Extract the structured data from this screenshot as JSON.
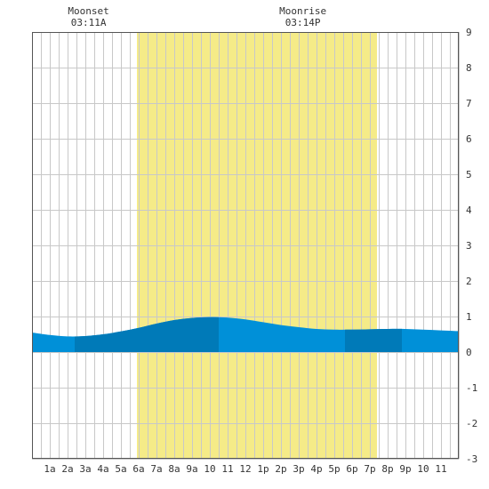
{
  "chart_data": {
    "type": "area",
    "title": "",
    "xlabel": "",
    "ylabel": "",
    "x_tick_labels": [
      "1a",
      "2a",
      "3a",
      "4a",
      "5a",
      "6a",
      "7a",
      "8a",
      "9a",
      "10",
      "11",
      "12",
      "1p",
      "2p",
      "3p",
      "4p",
      "5p",
      "6p",
      "7p",
      "8p",
      "9p",
      "10",
      "11"
    ],
    "ylim": [
      -3,
      9
    ],
    "y_ticks": [
      -3,
      -2,
      -1,
      0,
      1,
      2,
      3,
      4,
      5,
      6,
      7,
      8,
      9
    ],
    "xlim_hours": [
      0,
      24
    ],
    "grid": true,
    "daylight": {
      "start_hour": 5.9,
      "end_hour": 19.4,
      "color": "#f5eb88"
    },
    "annotations": [
      {
        "label": "Moonset",
        "time": "03:11A",
        "hour": 3.18
      },
      {
        "label": "Moonrise",
        "time": "03:14P",
        "hour": 15.23
      }
    ],
    "series": [
      {
        "hours": [
          0,
          1,
          2,
          3,
          4,
          5,
          6,
          7,
          8,
          9,
          10,
          11,
          12,
          13,
          14,
          15,
          16,
          17,
          18,
          19,
          20,
          21,
          22,
          23,
          24
        ],
        "values": [
          0.55,
          0.48,
          0.44,
          0.45,
          0.5,
          0.58,
          0.68,
          0.8,
          0.9,
          0.96,
          0.98,
          0.97,
          0.92,
          0.84,
          0.76,
          0.7,
          0.65,
          0.63,
          0.63,
          0.64,
          0.65,
          0.65,
          0.63,
          0.61,
          0.59
        ],
        "color": "#0090d8",
        "band_color": "#007ab8"
      }
    ],
    "dark_bands_hours": [
      [
        2.4,
        5.9
      ],
      [
        5.9,
        10.5
      ],
      [
        17.6,
        20.8
      ]
    ]
  }
}
